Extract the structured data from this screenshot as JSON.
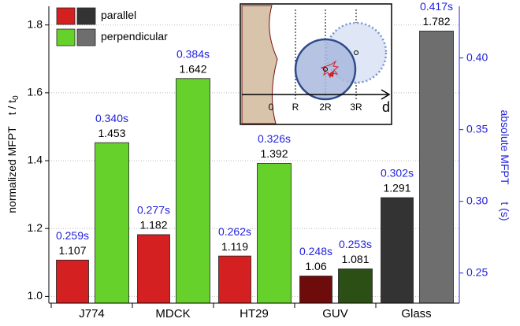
{
  "chart_data": {
    "type": "bar",
    "categories": [
      "J774",
      "MDCK",
      "HT29",
      "GUV",
      "Glass"
    ],
    "series": [
      {
        "name": "parallel",
        "legend_colors": [
          "#d42020",
          "#333333"
        ],
        "colors": [
          "#d42020",
          "#d42020",
          "#d42020",
          "#6e0c0c",
          "#333333"
        ],
        "values": [
          1.107,
          1.182,
          1.119,
          1.06,
          1.291
        ],
        "time_labels": [
          "0.259s",
          "0.277s",
          "0.262s",
          "0.248s",
          "0.302s"
        ]
      },
      {
        "name": "perpendicular",
        "legend_colors": [
          "#66d12a",
          "#6e6e6e"
        ],
        "colors": [
          "#66d12a",
          "#66d12a",
          "#66d12a",
          "#2c4f15",
          "#6e6e6e"
        ],
        "values": [
          1.453,
          1.642,
          1.392,
          1.081,
          1.782
        ],
        "time_labels": [
          "0.340s",
          "0.384s",
          "0.326s",
          "0.253s",
          "0.417s"
        ]
      }
    ],
    "y_label": "normalized MFPT",
    "y_label_symbol": "t / t",
    "y_label_subscript": "0",
    "y2_label": "absolute MFPT",
    "y2_label_symbol": "t (s)",
    "ylim": [
      0.98,
      1.855
    ],
    "yticks": [
      {
        "value": 1.0,
        "label": "1.0"
      },
      1.2,
      1.4,
      1.6,
      1.8
    ],
    "y2lim": [
      0.229,
      0.436
    ],
    "y2ticks": [
      0.25,
      {
        "value": 0.3,
        "label": "0.30"
      },
      0.35,
      {
        "value": 0.4,
        "label": "0.40"
      }
    ],
    "y2_color": "#2222dd",
    "grid": true,
    "inset": {
      "labels": [
        "0",
        "R",
        "2R",
        "3R"
      ],
      "axis_label": "d"
    }
  }
}
